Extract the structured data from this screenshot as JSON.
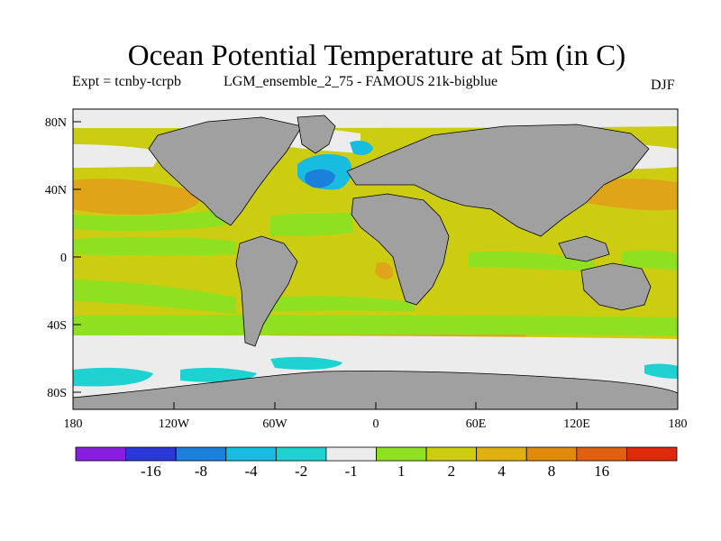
{
  "title": "Ocean Potential Temperature at 5m (in C)",
  "experiment": "Expt = tcnby-tcrpb",
  "ensemble": "LGM_ensemble_2_75 - FAMOUS 21k-bigblue",
  "season": "DJF",
  "map": {
    "lat_ticks": [
      "80N",
      "40N",
      "0",
      "40S",
      "80S"
    ],
    "lon_ticks": [
      "180",
      "120W",
      "60W",
      "0",
      "60E",
      "120E",
      "180"
    ]
  },
  "colorbar": {
    "colors": [
      "#8a1ee0",
      "#2a38d8",
      "#1a80dc",
      "#18bce0",
      "#1ed2d2",
      "#ececec",
      "#8ee020",
      "#cccc10",
      "#e0b010",
      "#e08a0a",
      "#e06010",
      "#dc2a0a"
    ],
    "labels": [
      "-16",
      "-8",
      "-4",
      "-2",
      "-1",
      "1",
      "2",
      "4",
      "8",
      "16"
    ]
  },
  "colors": {
    "land": "#a0a0a0",
    "ice": "#ececec",
    "ocean_base": "#cccc10"
  }
}
